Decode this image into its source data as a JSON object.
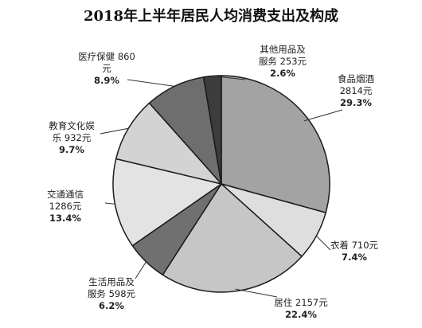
{
  "chart_data": {
    "type": "pie",
    "title": "2018年上半年居民人均消费支出及构成",
    "unit": "元",
    "slices": [
      {
        "category": "食品烟酒",
        "value": 2814,
        "value_label": "2814元",
        "percent": 29.3,
        "percent_label": "29.3%",
        "label_lines": [
          "食品烟酒",
          "2814元",
          "29.3%"
        ],
        "color": "#a3a3a3"
      },
      {
        "category": "衣着",
        "value": 710,
        "value_label": "710元",
        "percent": 7.4,
        "percent_label": "7.4%",
        "label_lines": [
          "衣着 710元",
          "7.4%"
        ],
        "color": "#dedede"
      },
      {
        "category": "居住",
        "value": 2157,
        "value_label": "2157元",
        "percent": 22.4,
        "percent_label": "22.4%",
        "label_lines": [
          "居住 2157元",
          "22.4%"
        ],
        "color": "#c6c6c6"
      },
      {
        "category": "生活用品及服务",
        "value": 598,
        "value_label": "598元",
        "percent": 6.2,
        "percent_label": "6.2%",
        "label_lines": [
          "生活用品及",
          "服务 598元",
          "6.2%"
        ],
        "color": "#707070"
      },
      {
        "category": "交通通信",
        "value": 1286,
        "value_label": "1286元",
        "percent": 13.4,
        "percent_label": "13.4%",
        "label_lines": [
          "交通通信",
          "1286元",
          "13.4%"
        ],
        "color": "#e3e3e3"
      },
      {
        "category": "教育文化娱乐",
        "value": 932,
        "value_label": "932元",
        "percent": 9.7,
        "percent_label": "9.7%",
        "label_lines": [
          "教育文化娱",
          "乐 932元",
          "9.7%"
        ],
        "color": "#d3d3d3"
      },
      {
        "category": "医疗保健",
        "value": 860,
        "value_label": "860元",
        "percent": 8.9,
        "percent_label": "8.9%",
        "label_lines": [
          "医疗保健 860",
          "元",
          "8.9%"
        ],
        "color": "#6e6e6e"
      },
      {
        "category": "其他用品及服务",
        "value": 253,
        "value_label": "253元",
        "percent": 2.6,
        "percent_label": "2.6%",
        "label_lines": [
          "其他用品及",
          "服务 253元",
          "2.6%"
        ],
        "color": "#3c3c3c"
      }
    ]
  }
}
